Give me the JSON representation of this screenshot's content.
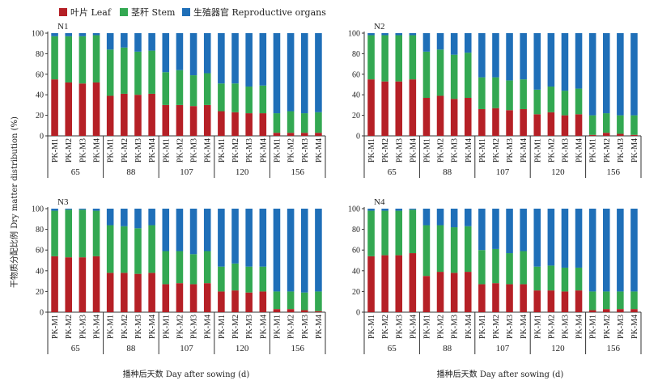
{
  "colors": {
    "leaf": "#b52026",
    "stem": "#33a852",
    "reproductive": "#1f6fb8"
  },
  "legend": [
    {
      "key": "leaf",
      "label": "叶片 Leaf"
    },
    {
      "key": "stem",
      "label": "茎秆 Stem"
    },
    {
      "key": "reproductive",
      "label": "生殖器官 Reproductive organs"
    }
  ],
  "ylabel": "干物质分配比例 Dry matter distribution (%)",
  "xlabel": "播种后天数 Day after sowing (d)",
  "chart_data": [
    {
      "type": "bar",
      "stacked": true,
      "panel_label": "N1",
      "ylim": [
        0,
        100
      ],
      "yticks": [
        0,
        20,
        40,
        60,
        80,
        100
      ],
      "days": [
        "65",
        "88",
        "107",
        "120",
        "156"
      ],
      "categories": [
        "PK-M1",
        "PK-M2",
        "PK-M3",
        "PK-M4"
      ],
      "series": [
        {
          "name": "叶片 Leaf",
          "values": [
            [
              55,
              52,
              51,
              52
            ],
            [
              39,
              41,
              40,
              41
            ],
            [
              30,
              30,
              29,
              30
            ],
            [
              24,
              23,
              22,
              22
            ],
            [
              3,
              3,
              3,
              3
            ]
          ]
        },
        {
          "name": "茎秆 Stem",
          "values": [
            [
              42,
              45,
              46,
              46
            ],
            [
              45,
              45,
              42,
              42
            ],
            [
              32,
              34,
              30,
              31
            ],
            [
              27,
              28,
              26,
              27
            ],
            [
              19,
              21,
              19,
              20
            ]
          ]
        },
        {
          "name": "生殖器官 Reproductive organs",
          "values": [
            [
              3,
              3,
              3,
              2
            ],
            [
              16,
              14,
              18,
              17
            ],
            [
              38,
              36,
              41,
              39
            ],
            [
              49,
              49,
              52,
              51
            ],
            [
              78,
              76,
              78,
              77
            ]
          ]
        }
      ]
    },
    {
      "type": "bar",
      "stacked": true,
      "panel_label": "N2",
      "ylim": [
        0,
        100
      ],
      "yticks": [
        0,
        20,
        40,
        60,
        80,
        100
      ],
      "days": [
        "65",
        "88",
        "107",
        "120",
        "156"
      ],
      "categories": [
        "PK-M1",
        "PK-M2",
        "PK-M3",
        "PK-M4"
      ],
      "series": [
        {
          "name": "叶片 Leaf",
          "values": [
            [
              55,
              53,
              53,
              55
            ],
            [
              37,
              39,
              36,
              37
            ],
            [
              26,
              27,
              25,
              26
            ],
            [
              21,
              23,
              20,
              21
            ],
            [
              1,
              3,
              2,
              1
            ]
          ]
        },
        {
          "name": "茎秆 Stem",
          "values": [
            [
              43,
              45,
              45,
              43
            ],
            [
              45,
              45,
              43,
              44
            ],
            [
              31,
              30,
              29,
              29
            ],
            [
              24,
              25,
              24,
              25
            ],
            [
              19,
              19,
              18,
              19
            ]
          ]
        },
        {
          "name": "生殖器官 Reproductive organs",
          "values": [
            [
              2,
              2,
              2,
              2
            ],
            [
              18,
              16,
              21,
              19
            ],
            [
              43,
              43,
              46,
              45
            ],
            [
              55,
              52,
              56,
              54
            ],
            [
              80,
              78,
              80,
              80
            ]
          ]
        }
      ]
    },
    {
      "type": "bar",
      "stacked": true,
      "panel_label": "N3",
      "ylim": [
        0,
        100
      ],
      "yticks": [
        0,
        20,
        40,
        60,
        80,
        100
      ],
      "days": [
        "65",
        "88",
        "107",
        "120",
        "156"
      ],
      "categories": [
        "PK-M1",
        "PK-M2",
        "PK-M3",
        "PK-M4"
      ],
      "series": [
        {
          "name": "叶片 Leaf",
          "values": [
            [
              54,
              53,
              53,
              54
            ],
            [
              38,
              38,
              37,
              38
            ],
            [
              27,
              28,
              27,
              28
            ],
            [
              20,
              21,
              19,
              20
            ],
            [
              3,
              3,
              2,
              1
            ]
          ]
        },
        {
          "name": "茎秆 Stem",
          "values": [
            [
              44,
              46,
              46,
              44
            ],
            [
              46,
              45,
              44,
              46
            ],
            [
              32,
              31,
              29,
              31
            ],
            [
              24,
              26,
              25,
              24
            ],
            [
              17,
              17,
              17,
              19
            ]
          ]
        },
        {
          "name": "生殖器官 Reproductive organs",
          "values": [
            [
              2,
              1,
              1,
              2
            ],
            [
              16,
              17,
              19,
              16
            ],
            [
              41,
              41,
              44,
              41
            ],
            [
              56,
              53,
              56,
              56
            ],
            [
              80,
              80,
              81,
              80
            ]
          ]
        }
      ]
    },
    {
      "type": "bar",
      "stacked": true,
      "panel_label": "N4",
      "ylim": [
        0,
        100
      ],
      "yticks": [
        0,
        20,
        40,
        60,
        80,
        100
      ],
      "days": [
        "65",
        "88",
        "107",
        "120",
        "156"
      ],
      "categories": [
        "PK-M1",
        "PK-M2",
        "PK-M3",
        "PK-M4"
      ],
      "series": [
        {
          "name": "叶片 Leaf",
          "values": [
            [
              54,
              55,
              55,
              57
            ],
            [
              35,
              39,
              38,
              39
            ],
            [
              27,
              28,
              27,
              27
            ],
            [
              21,
              21,
              20,
              21
            ],
            [
              2,
              3,
              3,
              3
            ]
          ]
        },
        {
          "name": "茎秆 Stem",
          "values": [
            [
              44,
              43,
              43,
              42
            ],
            [
              49,
              45,
              44,
              44
            ],
            [
              33,
              33,
              30,
              32
            ],
            [
              23,
              24,
              23,
              22
            ],
            [
              18,
              17,
              17,
              17
            ]
          ]
        },
        {
          "name": "生殖器官 Reproductive organs",
          "values": [
            [
              2,
              2,
              2,
              1
            ],
            [
              16,
              16,
              18,
              17
            ],
            [
              40,
              39,
              43,
              41
            ],
            [
              56,
              55,
              57,
              57
            ],
            [
              80,
              80,
              80,
              80
            ]
          ]
        }
      ]
    }
  ]
}
